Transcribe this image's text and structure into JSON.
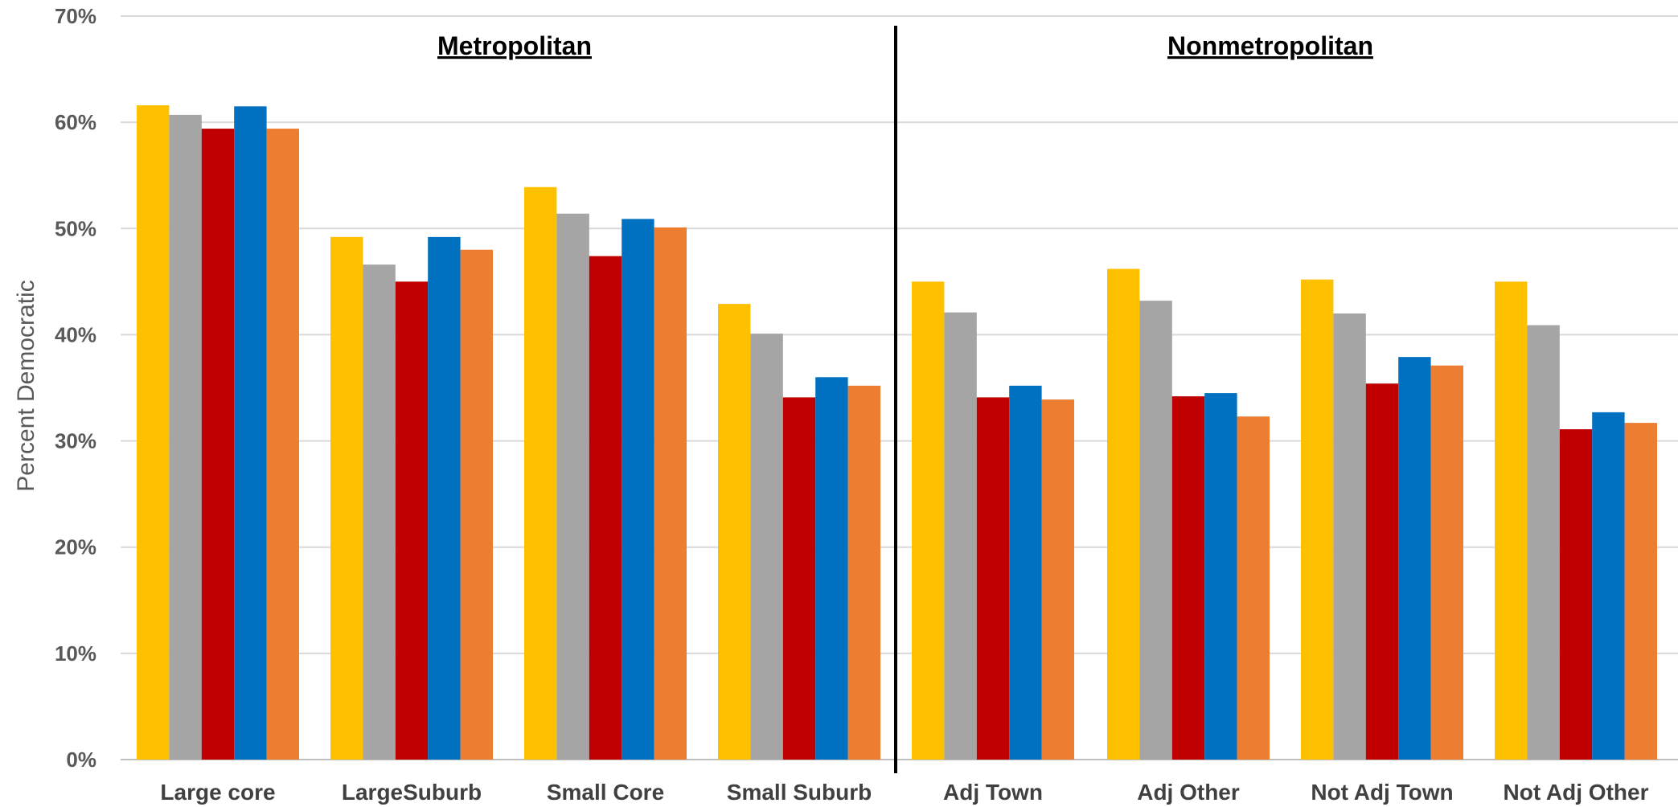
{
  "chart_data": {
    "type": "bar",
    "title": "",
    "xlabel": "",
    "ylabel": "Percent Democratic",
    "ylim": [
      0,
      70
    ],
    "y_tick_labels": [
      "0%",
      "10%",
      "20%",
      "30%",
      "40%",
      "50%",
      "60%",
      "70%"
    ],
    "y_ticks": [
      0,
      10,
      20,
      30,
      40,
      50,
      60,
      70
    ],
    "grid": true,
    "legend": "none",
    "categories": [
      "Large core",
      "LargeSuburb",
      "Small Core",
      "Small Suburb",
      "Adj Town",
      "Adj Other",
      "Not Adj Town",
      "Not Adj Other"
    ],
    "group_labels": [
      "Metropolitan",
      "Nonmetropolitan"
    ],
    "groups": [
      {
        "label_index": 0,
        "categories": [
          0,
          1,
          2,
          3
        ]
      },
      {
        "label_index": 1,
        "categories": [
          4,
          5,
          6,
          7
        ]
      }
    ],
    "series": [
      {
        "color": "#FFC000",
        "values": [
          61.6,
          49.2,
          53.9,
          42.9,
          45.0,
          46.2,
          45.2,
          45.0
        ]
      },
      {
        "color": "#A5A5A5",
        "values": [
          60.7,
          46.6,
          51.4,
          40.1,
          42.1,
          43.2,
          42.0,
          40.9
        ]
      },
      {
        "color": "#C00000",
        "values": [
          59.4,
          45.0,
          47.4,
          34.1,
          34.1,
          34.2,
          35.4,
          31.1
        ]
      },
      {
        "color": "#0070C0",
        "values": [
          61.5,
          49.2,
          50.9,
          36.0,
          35.2,
          34.5,
          37.9,
          32.7
        ]
      },
      {
        "color": "#ED7D31",
        "values": [
          59.4,
          48.0,
          50.1,
          35.2,
          33.9,
          32.3,
          37.1,
          31.7
        ]
      }
    ]
  }
}
